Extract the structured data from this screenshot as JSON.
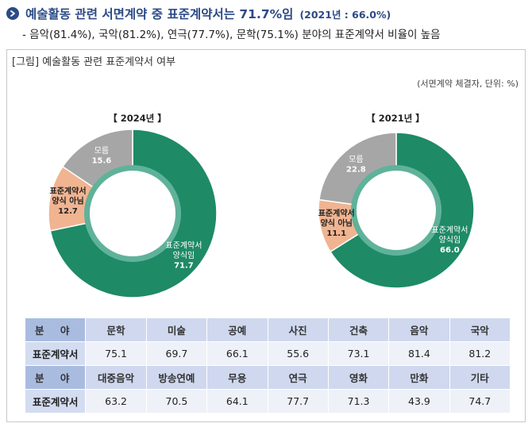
{
  "headline": {
    "title": "예술활동 관련 서면계약 중 표준계약서는 71.7%임",
    "subtitle": "(2021년 : 66.0%)",
    "bullet": "- 음악(81.4%), 국악(81.2%), 연극(77.7%), 문학(75.1%) 분야의 표준계약서 비율이 높음"
  },
  "figure": {
    "caption": "[그림] 예술활동 관련 표준계약서 여부",
    "unit_note": "(서면계약 체결자, 단위: %)"
  },
  "colors": {
    "standard": "#1e8a66",
    "not_standard": "#f0b491",
    "unknown": "#a6a6a6",
    "inner_ring": "#5fb299"
  },
  "chart_data": [
    {
      "type": "pie",
      "title": "【 2024년 】",
      "slices": [
        {
          "label_lines": [
            "표준계약서",
            "양식임"
          ],
          "value": 71.7,
          "value_text": "71.7"
        },
        {
          "label_lines": [
            "표준계약서",
            "양식 아님"
          ],
          "value": 12.7,
          "value_text": "12.7"
        },
        {
          "label_lines": [
            "모름"
          ],
          "value": 15.6,
          "value_text": "15.6"
        }
      ]
    },
    {
      "type": "pie",
      "title": "【 2021년 】",
      "slices": [
        {
          "label_lines": [
            "표준계약서",
            "양식임"
          ],
          "value": 66.0,
          "value_text": "66.0"
        },
        {
          "label_lines": [
            "표준계약서",
            "양식 아님"
          ],
          "value": 11.1,
          "value_text": "11.1"
        },
        {
          "label_lines": [
            "모름"
          ],
          "value": 22.8,
          "value_text": "22.8"
        }
      ]
    },
    {
      "type": "table",
      "rows": [
        {
          "label": "분 야",
          "cells": [
            "문학",
            "미술",
            "공예",
            "사진",
            "건축",
            "음악",
            "국악"
          ]
        },
        {
          "label": "표준계약서",
          "cells": [
            "75.1",
            "69.7",
            "66.1",
            "55.6",
            "73.1",
            "81.4",
            "81.2"
          ]
        },
        {
          "label": "분 야",
          "cells": [
            "대중음악",
            "방송연예",
            "무용",
            "연극",
            "영화",
            "만화",
            "기타"
          ]
        },
        {
          "label": "표준계약서",
          "cells": [
            "63.2",
            "70.5",
            "64.1",
            "77.7",
            "71.3",
            "43.9",
            "74.7"
          ]
        }
      ]
    }
  ]
}
